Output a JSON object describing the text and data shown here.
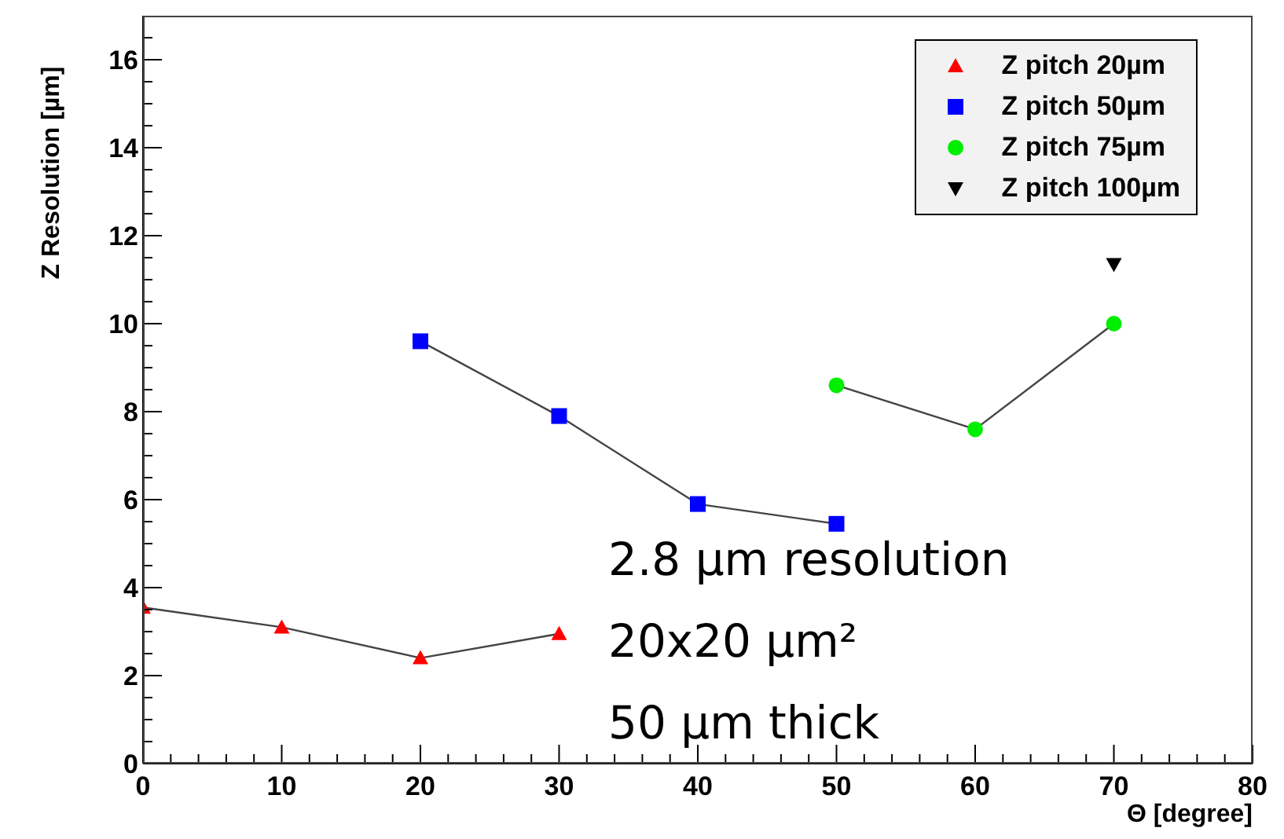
{
  "chart_data": {
    "type": "line",
    "xlabel": "Θ [degree]",
    "ylabel": "Z Resolution [µm]",
    "xlim": [
      0,
      80
    ],
    "ylim": [
      0,
      17
    ],
    "xticks": [
      0,
      {
        "value": 2,
        "label": null
      },
      {
        "value": 4,
        "label": null
      },
      {
        "value": 6,
        "label": null
      },
      {
        "value": 8,
        "label": null
      },
      10,
      {
        "value": 12,
        "label": null
      },
      {
        "value": 14,
        "label": null
      },
      {
        "value": 16,
        "label": null
      },
      {
        "value": 18,
        "label": null
      },
      20,
      {
        "value": 22,
        "label": null
      },
      {
        "value": 24,
        "label": null
      },
      {
        "value": 26,
        "label": null
      },
      {
        "value": 28,
        "label": null
      },
      30,
      {
        "value": 32,
        "label": null
      },
      {
        "value": 34,
        "label": null
      },
      {
        "value": 36,
        "label": null
      },
      {
        "value": 38,
        "label": null
      },
      40,
      {
        "value": 42,
        "label": null
      },
      {
        "value": 44,
        "label": null
      },
      {
        "value": 46,
        "label": null
      },
      {
        "value": 48,
        "label": null
      },
      50,
      {
        "value": 52,
        "label": null
      },
      {
        "value": 54,
        "label": null
      },
      {
        "value": 56,
        "label": null
      },
      {
        "value": 58,
        "label": null
      },
      60,
      {
        "value": 62,
        "label": null
      },
      {
        "value": 64,
        "label": null
      },
      {
        "value": 66,
        "label": null
      },
      {
        "value": 68,
        "label": null
      },
      70,
      {
        "value": 72,
        "label": null
      },
      {
        "value": 74,
        "label": null
      },
      {
        "value": 76,
        "label": null
      },
      {
        "value": 78,
        "label": null
      },
      80
    ],
    "yticks": [
      0,
      {
        "value": 0.5,
        "label": null
      },
      {
        "value": 1,
        "label": null
      },
      {
        "value": 1.5,
        "label": null
      },
      2,
      {
        "value": 2.5,
        "label": null
      },
      {
        "value": 3,
        "label": null
      },
      {
        "value": 3.5,
        "label": null
      },
      4,
      {
        "value": 4.5,
        "label": null
      },
      {
        "value": 5,
        "label": null
      },
      {
        "value": 5.5,
        "label": null
      },
      6,
      {
        "value": 6.5,
        "label": null
      },
      {
        "value": 7,
        "label": null
      },
      {
        "value": 7.5,
        "label": null
      },
      8,
      {
        "value": 8.5,
        "label": null
      },
      {
        "value": 9,
        "label": null
      },
      {
        "value": 9.5,
        "label": null
      },
      10,
      {
        "value": 10.5,
        "label": null
      },
      {
        "value": 11,
        "label": null
      },
      {
        "value": 11.5,
        "label": null
      },
      12,
      {
        "value": 12.5,
        "label": null
      },
      {
        "value": 13,
        "label": null
      },
      {
        "value": 13.5,
        "label": null
      },
      14,
      {
        "value": 14.5,
        "label": null
      },
      {
        "value": 15,
        "label": null
      },
      {
        "value": 15.5,
        "label": null
      },
      16,
      {
        "value": 16.5,
        "label": null
      }
    ],
    "legend": "top right",
    "annotations": [
      "2.8 µm resolution",
      "20x20 µm²",
      "50 µm thick"
    ],
    "series": [
      {
        "name": "Z pitch 20µm",
        "color": "#ff0000",
        "marker": "triangle",
        "x": [
          0,
          10,
          20,
          30
        ],
        "values": [
          3.55,
          3.1,
          2.4,
          2.95
        ]
      },
      {
        "name": "Z pitch 50µm",
        "color": "#0000ff",
        "marker": "square",
        "x": [
          20,
          30,
          40,
          50
        ],
        "values": [
          9.6,
          7.9,
          5.9,
          5.45
        ]
      },
      {
        "name": "Z pitch 75µm",
        "color": "#00ee00",
        "marker": "circle",
        "x": [
          50,
          60,
          70
        ],
        "values": [
          8.6,
          7.6,
          10.0
        ]
      },
      {
        "name": "Z pitch 100µm",
        "color": "#000000",
        "marker": "triangle-down",
        "type": "scatter",
        "x": [
          70
        ],
        "values": [
          11.35
        ]
      }
    ]
  }
}
